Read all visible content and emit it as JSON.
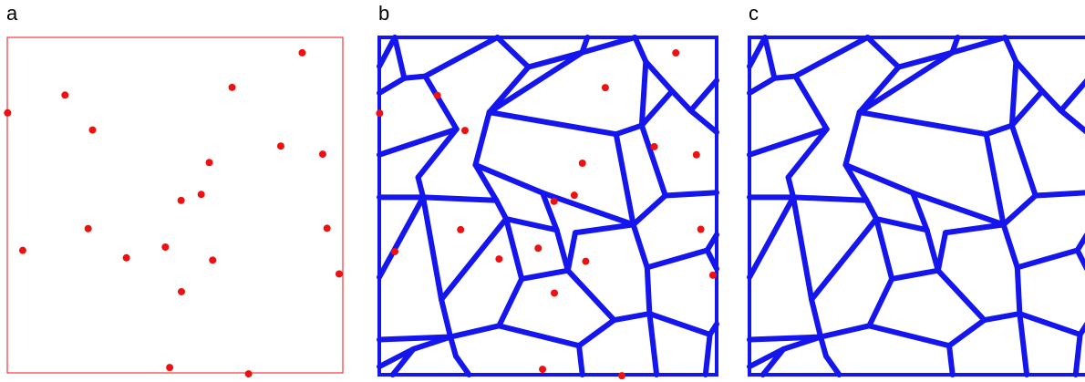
{
  "panels": [
    {
      "label": "a",
      "shows_points": true,
      "shows_edges": false
    },
    {
      "label": "b",
      "shows_points": true,
      "shows_edges": true
    },
    {
      "label": "c",
      "shows_points": false,
      "shows_edges": true
    }
  ],
  "colors": {
    "points": "#ee1111",
    "edges": "#1515ee",
    "frame_a": "#ee1111",
    "frame_bc": "#1515ee"
  },
  "seed_points": [
    [
      0.879,
      0.046
    ],
    [
      0.67,
      0.149
    ],
    [
      0.172,
      0.172
    ],
    [
      0.001,
      0.225
    ],
    [
      0.254,
      0.276
    ],
    [
      0.815,
      0.324
    ],
    [
      0.94,
      0.348
    ],
    [
      0.602,
      0.373
    ],
    [
      0.578,
      0.468
    ],
    [
      0.518,
      0.486
    ],
    [
      0.241,
      0.57
    ],
    [
      0.953,
      0.569
    ],
    [
      0.046,
      0.635
    ],
    [
      0.471,
      0.625
    ],
    [
      0.355,
      0.657
    ],
    [
      0.612,
      0.664
    ],
    [
      0.519,
      0.758
    ],
    [
      0.989,
      0.705
    ],
    [
      0.484,
      0.984
    ],
    [
      0.719,
      1.003
    ]
  ],
  "edges": [
    [
      [
        0.046,
        0.0
      ],
      [
        0.0,
        0.086
      ]
    ],
    [
      [
        0.046,
        0.0
      ],
      [
        0.074,
        0.121
      ]
    ],
    [
      [
        0.074,
        0.121
      ],
      [
        0.0,
        0.165
      ]
    ],
    [
      [
        0.074,
        0.121
      ],
      [
        0.136,
        0.115
      ]
    ],
    [
      [
        0.136,
        0.115
      ],
      [
        0.229,
        0.272
      ]
    ],
    [
      [
        0.136,
        0.115
      ],
      [
        0.35,
        0.0
      ]
    ],
    [
      [
        0.35,
        0.0
      ],
      [
        0.442,
        0.088
      ]
    ],
    [
      [
        0.442,
        0.088
      ],
      [
        0.601,
        0.045
      ]
    ],
    [
      [
        0.442,
        0.088
      ],
      [
        0.326,
        0.222
      ]
    ],
    [
      [
        0.601,
        0.045
      ],
      [
        0.617,
        0.0
      ]
    ],
    [
      [
        0.601,
        0.045
      ],
      [
        0.758,
        0.0
      ]
    ],
    [
      [
        0.758,
        0.0
      ],
      [
        0.79,
        0.072
      ]
    ],
    [
      [
        0.79,
        0.072
      ],
      [
        0.868,
        0.159
      ]
    ],
    [
      [
        0.868,
        0.159
      ],
      [
        0.923,
        0.217
      ]
    ],
    [
      [
        0.923,
        0.217
      ],
      [
        1.0,
        0.128
      ]
    ],
    [
      [
        0.923,
        0.217
      ],
      [
        1.0,
        0.281
      ]
    ],
    [
      [
        0.868,
        0.159
      ],
      [
        0.778,
        0.261
      ]
    ],
    [
      [
        0.778,
        0.261
      ],
      [
        0.79,
        0.072
      ]
    ],
    [
      [
        0.326,
        0.222
      ],
      [
        0.601,
        0.045
      ]
    ],
    [
      [
        0.326,
        0.222
      ],
      [
        0.702,
        0.287
      ]
    ],
    [
      [
        0.702,
        0.287
      ],
      [
        0.778,
        0.261
      ]
    ],
    [
      [
        0.326,
        0.222
      ],
      [
        0.285,
        0.378
      ]
    ],
    [
      [
        0.229,
        0.272
      ],
      [
        0.0,
        0.348
      ]
    ],
    [
      [
        0.229,
        0.272
      ],
      [
        0.115,
        0.415
      ]
    ],
    [
      [
        0.115,
        0.415
      ],
      [
        0.13,
        0.474
      ]
    ],
    [
      [
        0.13,
        0.474
      ],
      [
        0.0,
        0.474
      ]
    ],
    [
      [
        0.13,
        0.474
      ],
      [
        0.347,
        0.483
      ]
    ],
    [
      [
        0.285,
        0.378
      ],
      [
        0.347,
        0.483
      ]
    ],
    [
      [
        0.285,
        0.378
      ],
      [
        0.484,
        0.461
      ]
    ],
    [
      [
        0.484,
        0.461
      ],
      [
        0.526,
        0.571
      ]
    ],
    [
      [
        0.484,
        0.461
      ],
      [
        0.753,
        0.555
      ]
    ],
    [
      [
        0.702,
        0.287
      ],
      [
        0.753,
        0.555
      ]
    ],
    [
      [
        0.778,
        0.261
      ],
      [
        0.848,
        0.469
      ]
    ],
    [
      [
        0.848,
        0.469
      ],
      [
        1.0,
        0.46
      ]
    ],
    [
      [
        0.848,
        0.469
      ],
      [
        0.753,
        0.555
      ]
    ],
    [
      [
        0.347,
        0.483
      ],
      [
        0.376,
        0.538
      ]
    ],
    [
      [
        0.376,
        0.538
      ],
      [
        0.526,
        0.571
      ]
    ],
    [
      [
        0.13,
        0.474
      ],
      [
        0.0,
        0.711
      ]
    ],
    [
      [
        0.13,
        0.474
      ],
      [
        0.184,
        0.777
      ]
    ],
    [
      [
        0.184,
        0.777
      ],
      [
        0.211,
        0.888
      ]
    ],
    [
      [
        0.211,
        0.888
      ],
      [
        0.0,
        0.896
      ]
    ],
    [
      [
        0.211,
        0.888
      ],
      [
        0.101,
        0.924
      ]
    ],
    [
      [
        0.101,
        0.924
      ],
      [
        0.0,
        0.976
      ]
    ],
    [
      [
        0.101,
        0.924
      ],
      [
        0.04,
        1.0
      ]
    ],
    [
      [
        0.211,
        0.888
      ],
      [
        0.227,
        0.945
      ]
    ],
    [
      [
        0.227,
        0.945
      ],
      [
        0.266,
        1.0
      ]
    ],
    [
      [
        0.376,
        0.538
      ],
      [
        0.184,
        0.777
      ]
    ],
    [
      [
        0.376,
        0.538
      ],
      [
        0.422,
        0.716
      ]
    ],
    [
      [
        0.422,
        0.716
      ],
      [
        0.559,
        0.691
      ]
    ],
    [
      [
        0.526,
        0.571
      ],
      [
        0.559,
        0.691
      ]
    ],
    [
      [
        0.559,
        0.691
      ],
      [
        0.581,
        0.579
      ]
    ],
    [
      [
        0.581,
        0.579
      ],
      [
        0.753,
        0.555
      ]
    ],
    [
      [
        0.753,
        0.555
      ],
      [
        0.794,
        0.682
      ]
    ],
    [
      [
        0.794,
        0.682
      ],
      [
        0.972,
        0.631
      ]
    ],
    [
      [
        0.972,
        0.631
      ],
      [
        1.0,
        0.585
      ]
    ],
    [
      [
        0.972,
        0.631
      ],
      [
        1.0,
        0.686
      ]
    ],
    [
      [
        0.794,
        0.682
      ],
      [
        0.801,
        0.819
      ]
    ],
    [
      [
        0.801,
        0.819
      ],
      [
        0.696,
        0.838
      ]
    ],
    [
      [
        0.696,
        0.838
      ],
      [
        0.592,
        0.914
      ]
    ],
    [
      [
        0.592,
        0.914
      ],
      [
        0.355,
        0.855
      ]
    ],
    [
      [
        0.355,
        0.855
      ],
      [
        0.211,
        0.888
      ]
    ],
    [
      [
        0.355,
        0.855
      ],
      [
        0.422,
        0.716
      ]
    ],
    [
      [
        0.592,
        0.914
      ],
      [
        0.602,
        1.0
      ]
    ],
    [
      [
        0.801,
        0.819
      ],
      [
        0.822,
        1.0
      ]
    ],
    [
      [
        0.801,
        0.819
      ],
      [
        0.98,
        0.881
      ]
    ],
    [
      [
        0.98,
        0.881
      ],
      [
        1.0,
        0.85
      ]
    ],
    [
      [
        0.98,
        0.881
      ],
      [
        0.967,
        1.0
      ]
    ],
    [
      [
        0.559,
        0.691
      ],
      [
        0.696,
        0.838
      ]
    ]
  ]
}
